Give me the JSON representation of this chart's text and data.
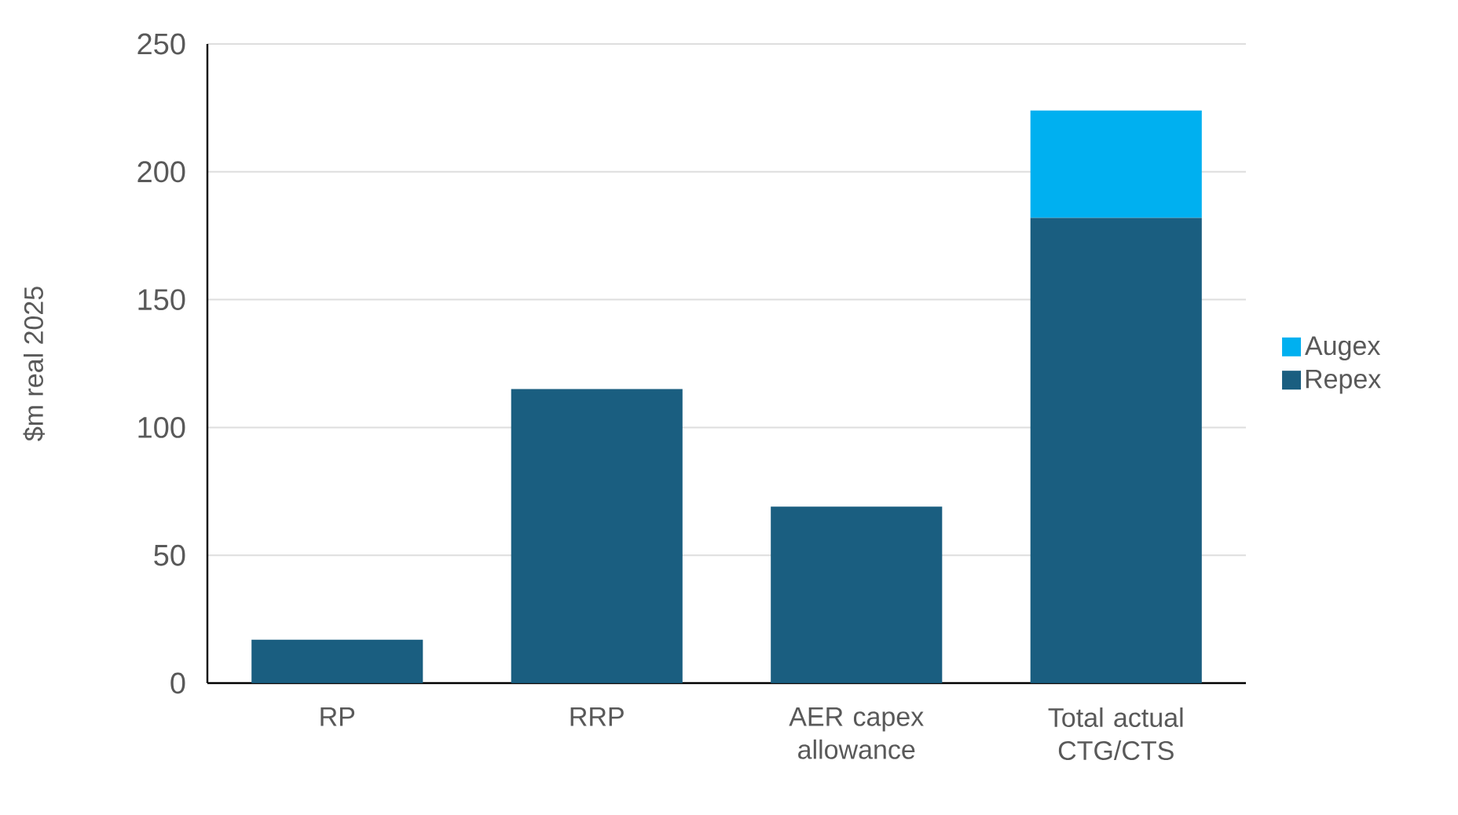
{
  "chart_data": {
    "type": "bar",
    "stacked": true,
    "ylabel": "$m real 2025",
    "categories": [
      "RP",
      "RRP",
      "AER capex allowance",
      "Total actual CTG/CTS"
    ],
    "series": [
      {
        "name": "Repex",
        "color": "#1a5e80",
        "values": [
          17,
          115,
          69,
          182
        ]
      },
      {
        "name": "Augex",
        "color": "#00b0f0",
        "values": [
          null,
          null,
          null,
          42
        ]
      }
    ],
    "ylim": [
      0,
      250
    ],
    "yticks": [
      0,
      50,
      100,
      150,
      200,
      250
    ],
    "grid": "y",
    "legend": "right"
  }
}
